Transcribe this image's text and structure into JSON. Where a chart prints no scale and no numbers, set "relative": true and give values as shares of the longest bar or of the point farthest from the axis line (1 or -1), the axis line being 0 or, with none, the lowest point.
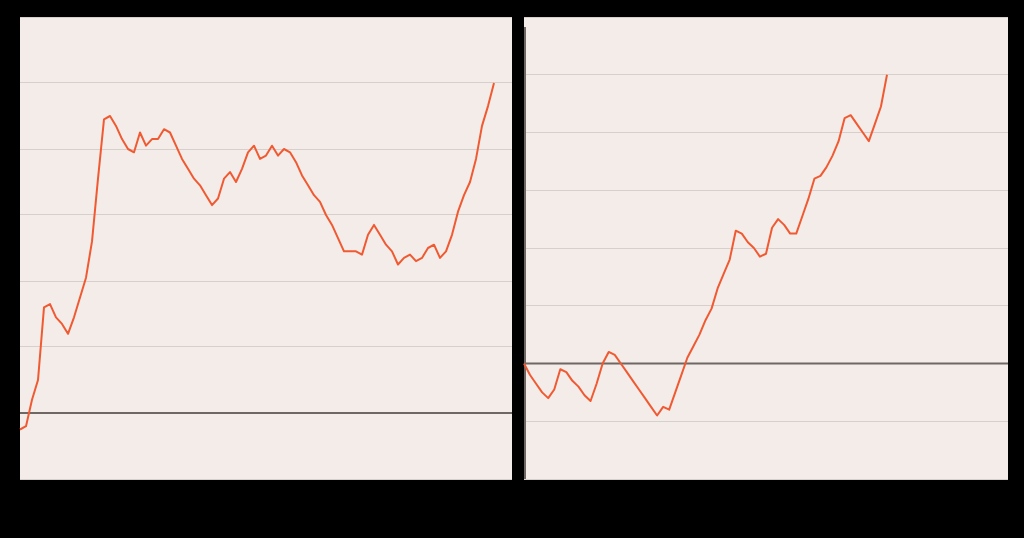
{
  "chart_data": [
    {
      "type": "line",
      "relative": true,
      "grid": "y",
      "color": "#f05a32",
      "categories": [
        null,
        null,
        null,
        null,
        null,
        null,
        null,
        null,
        null,
        null,
        null,
        null,
        null,
        null,
        null,
        null,
        null,
        null,
        null,
        null,
        null,
        null,
        null,
        null,
        null,
        null,
        null,
        null,
        null,
        null,
        null,
        null,
        null,
        null,
        null,
        null,
        null,
        null,
        null,
        null,
        null,
        null,
        null,
        null,
        null,
        null,
        null,
        null,
        null,
        null,
        null,
        null,
        null,
        null,
        null,
        null,
        null,
        null,
        null,
        null,
        null,
        null,
        null,
        null,
        null,
        null,
        null,
        null,
        null,
        null,
        null,
        null,
        null,
        null,
        null,
        null,
        null,
        null,
        null,
        null,
        null,
        null,
        null
      ],
      "values": [
        -0.05,
        -0.04,
        0.04,
        0.1,
        0.32,
        0.33,
        0.29,
        0.27,
        0.24,
        0.29,
        0.35,
        0.41,
        0.52,
        0.71,
        0.89,
        0.9,
        0.87,
        0.83,
        0.8,
        0.79,
        0.85,
        0.81,
        0.83,
        0.83,
        0.86,
        0.85,
        0.81,
        0.77,
        0.74,
        0.71,
        0.69,
        0.66,
        0.63,
        0.65,
        0.71,
        0.73,
        0.7,
        0.74,
        0.79,
        0.81,
        0.77,
        0.78,
        0.81,
        0.78,
        0.8,
        0.79,
        0.76,
        0.72,
        0.69,
        0.66,
        0.64,
        0.6,
        0.57,
        0.53,
        0.49,
        0.49,
        0.49,
        0.48,
        0.54,
        0.57,
        0.54,
        0.51,
        0.49,
        0.45,
        0.47,
        0.48,
        0.46,
        0.47,
        0.5,
        0.51,
        0.47,
        0.49,
        0.54,
        0.61,
        0.66,
        0.7,
        0.77,
        0.87,
        0.93,
        1.0,
        null,
        null,
        null
      ]
    },
    {
      "type": "line",
      "relative": true,
      "grid": "y",
      "color": "#f05a32",
      "categories": [
        null,
        null,
        null,
        null,
        null,
        null,
        null,
        null,
        null,
        null,
        null,
        null,
        null,
        null,
        null,
        null,
        null,
        null,
        null,
        null,
        null,
        null,
        null,
        null,
        null,
        null,
        null,
        null,
        null,
        null,
        null,
        null,
        null,
        null,
        null,
        null,
        null,
        null,
        null,
        null,
        null,
        null,
        null,
        null,
        null,
        null,
        null,
        null,
        null,
        null,
        null,
        null,
        null,
        null,
        null,
        null,
        null,
        null,
        null,
        null,
        null,
        null,
        null,
        null,
        null,
        null,
        null,
        null,
        null,
        null,
        null,
        null,
        null,
        null,
        null,
        null,
        null,
        null,
        null,
        null,
        null
      ],
      "values": [
        0.0,
        -0.04,
        -0.07,
        -0.1,
        -0.12,
        -0.09,
        -0.02,
        -0.03,
        -0.06,
        -0.08,
        -0.11,
        -0.13,
        -0.07,
        0.0,
        0.04,
        0.03,
        0.0,
        -0.03,
        -0.06,
        -0.09,
        -0.12,
        -0.15,
        -0.18,
        -0.15,
        -0.16,
        -0.1,
        -0.04,
        0.02,
        0.06,
        0.1,
        0.15,
        0.19,
        0.26,
        0.31,
        0.36,
        0.46,
        0.45,
        0.42,
        0.4,
        0.37,
        0.38,
        0.47,
        0.5,
        0.48,
        0.45,
        0.45,
        0.51,
        0.57,
        0.64,
        0.65,
        0.68,
        0.72,
        0.77,
        0.85,
        0.86,
        0.83,
        0.8,
        0.77,
        0.83,
        0.89,
        1.0,
        null,
        null,
        null,
        null,
        null,
        null,
        null,
        null,
        null,
        null,
        null,
        null,
        null,
        null,
        null,
        null,
        null,
        null,
        null,
        null
      ]
    }
  ]
}
